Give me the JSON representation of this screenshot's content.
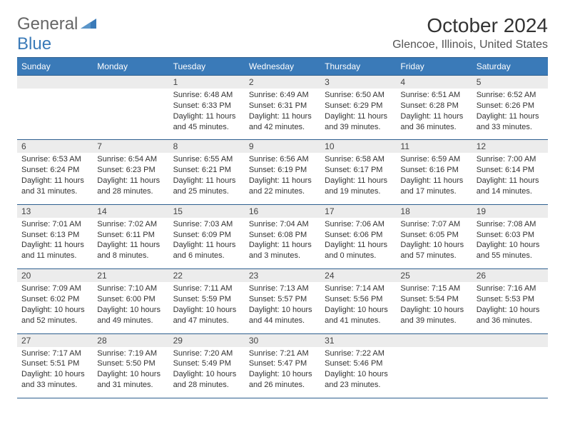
{
  "logo": {
    "general": "General",
    "blue": "Blue"
  },
  "title": "October 2024",
  "subtitle": "Glencoe, Illinois, United States",
  "colors": {
    "header_bg": "#3a7ab8",
    "border": "#2e5f8f",
    "daynum_bg": "#ececec",
    "text": "#333333"
  },
  "day_headers": [
    "Sunday",
    "Monday",
    "Tuesday",
    "Wednesday",
    "Thursday",
    "Friday",
    "Saturday"
  ],
  "weeks": [
    [
      {
        "num": "",
        "lines": [
          "",
          "",
          "",
          ""
        ]
      },
      {
        "num": "",
        "lines": [
          "",
          "",
          "",
          ""
        ]
      },
      {
        "num": "1",
        "lines": [
          "Sunrise: 6:48 AM",
          "Sunset: 6:33 PM",
          "Daylight: 11 hours",
          "and 45 minutes."
        ]
      },
      {
        "num": "2",
        "lines": [
          "Sunrise: 6:49 AM",
          "Sunset: 6:31 PM",
          "Daylight: 11 hours",
          "and 42 minutes."
        ]
      },
      {
        "num": "3",
        "lines": [
          "Sunrise: 6:50 AM",
          "Sunset: 6:29 PM",
          "Daylight: 11 hours",
          "and 39 minutes."
        ]
      },
      {
        "num": "4",
        "lines": [
          "Sunrise: 6:51 AM",
          "Sunset: 6:28 PM",
          "Daylight: 11 hours",
          "and 36 minutes."
        ]
      },
      {
        "num": "5",
        "lines": [
          "Sunrise: 6:52 AM",
          "Sunset: 6:26 PM",
          "Daylight: 11 hours",
          "and 33 minutes."
        ]
      }
    ],
    [
      {
        "num": "6",
        "lines": [
          "Sunrise: 6:53 AM",
          "Sunset: 6:24 PM",
          "Daylight: 11 hours",
          "and 31 minutes."
        ]
      },
      {
        "num": "7",
        "lines": [
          "Sunrise: 6:54 AM",
          "Sunset: 6:23 PM",
          "Daylight: 11 hours",
          "and 28 minutes."
        ]
      },
      {
        "num": "8",
        "lines": [
          "Sunrise: 6:55 AM",
          "Sunset: 6:21 PM",
          "Daylight: 11 hours",
          "and 25 minutes."
        ]
      },
      {
        "num": "9",
        "lines": [
          "Sunrise: 6:56 AM",
          "Sunset: 6:19 PM",
          "Daylight: 11 hours",
          "and 22 minutes."
        ]
      },
      {
        "num": "10",
        "lines": [
          "Sunrise: 6:58 AM",
          "Sunset: 6:17 PM",
          "Daylight: 11 hours",
          "and 19 minutes."
        ]
      },
      {
        "num": "11",
        "lines": [
          "Sunrise: 6:59 AM",
          "Sunset: 6:16 PM",
          "Daylight: 11 hours",
          "and 17 minutes."
        ]
      },
      {
        "num": "12",
        "lines": [
          "Sunrise: 7:00 AM",
          "Sunset: 6:14 PM",
          "Daylight: 11 hours",
          "and 14 minutes."
        ]
      }
    ],
    [
      {
        "num": "13",
        "lines": [
          "Sunrise: 7:01 AM",
          "Sunset: 6:13 PM",
          "Daylight: 11 hours",
          "and 11 minutes."
        ]
      },
      {
        "num": "14",
        "lines": [
          "Sunrise: 7:02 AM",
          "Sunset: 6:11 PM",
          "Daylight: 11 hours",
          "and 8 minutes."
        ]
      },
      {
        "num": "15",
        "lines": [
          "Sunrise: 7:03 AM",
          "Sunset: 6:09 PM",
          "Daylight: 11 hours",
          "and 6 minutes."
        ]
      },
      {
        "num": "16",
        "lines": [
          "Sunrise: 7:04 AM",
          "Sunset: 6:08 PM",
          "Daylight: 11 hours",
          "and 3 minutes."
        ]
      },
      {
        "num": "17",
        "lines": [
          "Sunrise: 7:06 AM",
          "Sunset: 6:06 PM",
          "Daylight: 11 hours",
          "and 0 minutes."
        ]
      },
      {
        "num": "18",
        "lines": [
          "Sunrise: 7:07 AM",
          "Sunset: 6:05 PM",
          "Daylight: 10 hours",
          "and 57 minutes."
        ]
      },
      {
        "num": "19",
        "lines": [
          "Sunrise: 7:08 AM",
          "Sunset: 6:03 PM",
          "Daylight: 10 hours",
          "and 55 minutes."
        ]
      }
    ],
    [
      {
        "num": "20",
        "lines": [
          "Sunrise: 7:09 AM",
          "Sunset: 6:02 PM",
          "Daylight: 10 hours",
          "and 52 minutes."
        ]
      },
      {
        "num": "21",
        "lines": [
          "Sunrise: 7:10 AM",
          "Sunset: 6:00 PM",
          "Daylight: 10 hours",
          "and 49 minutes."
        ]
      },
      {
        "num": "22",
        "lines": [
          "Sunrise: 7:11 AM",
          "Sunset: 5:59 PM",
          "Daylight: 10 hours",
          "and 47 minutes."
        ]
      },
      {
        "num": "23",
        "lines": [
          "Sunrise: 7:13 AM",
          "Sunset: 5:57 PM",
          "Daylight: 10 hours",
          "and 44 minutes."
        ]
      },
      {
        "num": "24",
        "lines": [
          "Sunrise: 7:14 AM",
          "Sunset: 5:56 PM",
          "Daylight: 10 hours",
          "and 41 minutes."
        ]
      },
      {
        "num": "25",
        "lines": [
          "Sunrise: 7:15 AM",
          "Sunset: 5:54 PM",
          "Daylight: 10 hours",
          "and 39 minutes."
        ]
      },
      {
        "num": "26",
        "lines": [
          "Sunrise: 7:16 AM",
          "Sunset: 5:53 PM",
          "Daylight: 10 hours",
          "and 36 minutes."
        ]
      }
    ],
    [
      {
        "num": "27",
        "lines": [
          "Sunrise: 7:17 AM",
          "Sunset: 5:51 PM",
          "Daylight: 10 hours",
          "and 33 minutes."
        ]
      },
      {
        "num": "28",
        "lines": [
          "Sunrise: 7:19 AM",
          "Sunset: 5:50 PM",
          "Daylight: 10 hours",
          "and 31 minutes."
        ]
      },
      {
        "num": "29",
        "lines": [
          "Sunrise: 7:20 AM",
          "Sunset: 5:49 PM",
          "Daylight: 10 hours",
          "and 28 minutes."
        ]
      },
      {
        "num": "30",
        "lines": [
          "Sunrise: 7:21 AM",
          "Sunset: 5:47 PM",
          "Daylight: 10 hours",
          "and 26 minutes."
        ]
      },
      {
        "num": "31",
        "lines": [
          "Sunrise: 7:22 AM",
          "Sunset: 5:46 PM",
          "Daylight: 10 hours",
          "and 23 minutes."
        ]
      },
      {
        "num": "",
        "lines": [
          "",
          "",
          "",
          ""
        ]
      },
      {
        "num": "",
        "lines": [
          "",
          "",
          "",
          ""
        ]
      }
    ]
  ]
}
